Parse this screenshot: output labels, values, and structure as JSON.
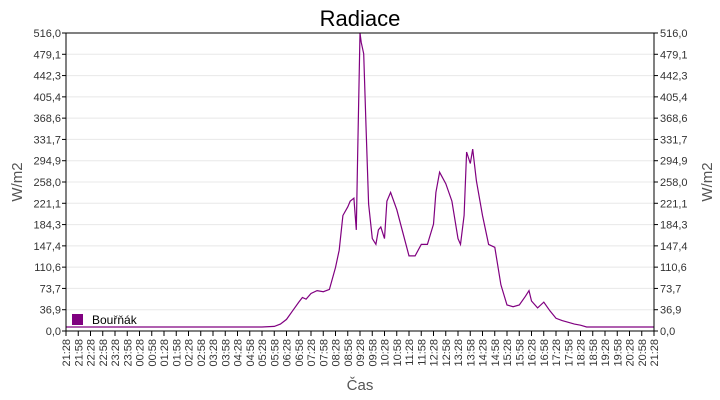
{
  "chart_data": {
    "type": "line",
    "title": "Radiace",
    "xlabel": "Čas",
    "ylabel": "W/m2",
    "ylabel_right": "W/m2",
    "ylim": [
      0,
      516
    ],
    "y_ticks": [
      "0,0",
      "36,9",
      "73,7",
      "110,6",
      "147,4",
      "184,3",
      "221,1",
      "258,0",
      "294,9",
      "331,7",
      "368,6",
      "405,4",
      "442,3",
      "479,1",
      "516,0"
    ],
    "x_ticks": [
      "21:28",
      "21:58",
      "22:28",
      "22:58",
      "23:28",
      "23:58",
      "00:28",
      "00:58",
      "01:28",
      "01:58",
      "02:28",
      "02:58",
      "03:28",
      "03:58",
      "04:28",
      "04:58",
      "05:28",
      "05:58",
      "06:28",
      "06:58",
      "07:28",
      "07:58",
      "08:28",
      "08:58",
      "09:28",
      "09:58",
      "10:28",
      "10:58",
      "11:28",
      "11:58",
      "12:28",
      "12:58",
      "13:28",
      "13:58",
      "14:28",
      "14:58",
      "15:28",
      "15:58",
      "16:28",
      "16:58",
      "17:28",
      "17:58",
      "18:28",
      "18:58",
      "19:28",
      "19:58",
      "20:28",
      "20:58",
      "21:28"
    ],
    "grid": true,
    "legend_position": "bottom-left inside",
    "series": [
      {
        "name": "Bouřňák",
        "color": "#800080",
        "x_index": [
          0,
          16,
          17,
          17.5,
          18,
          18.5,
          19,
          19.3,
          19.6,
          20,
          20.5,
          21,
          21.5,
          22,
          22.3,
          22.6,
          23,
          23.2,
          23.5,
          23.7,
          23.8,
          24,
          24.1,
          24.3,
          24.5,
          24.7,
          25,
          25.3,
          25.5,
          25.7,
          26,
          26.2,
          26.5,
          27,
          27.5,
          28,
          28.5,
          29,
          29.5,
          30,
          30.2,
          30.5,
          31,
          31.5,
          32,
          32.2,
          32.5,
          32.7,
          33,
          33.2,
          33.5,
          34,
          34.5,
          35,
          35.5,
          36,
          36.5,
          37,
          37.5,
          37.8,
          38,
          38.5,
          39,
          39.5,
          40,
          40.5,
          41,
          41.5,
          42,
          42.5,
          48
        ],
        "values": [
          7,
          7,
          8,
          12,
          20,
          35,
          50,
          58,
          55,
          65,
          70,
          68,
          72,
          110,
          140,
          200,
          215,
          225,
          230,
          175,
          300,
          516,
          500,
          480,
          350,
          220,
          160,
          150,
          175,
          180,
          160,
          225,
          240,
          210,
          170,
          130,
          130,
          150,
          150,
          185,
          240,
          275,
          255,
          225,
          160,
          150,
          200,
          310,
          290,
          315,
          260,
          200,
          150,
          145,
          80,
          45,
          42,
          45,
          60,
          70,
          52,
          40,
          50,
          35,
          22,
          18,
          15,
          12,
          10,
          7,
          7
        ]
      }
    ]
  },
  "legend": {
    "label": "Bouřňák",
    "color": "#800080"
  }
}
